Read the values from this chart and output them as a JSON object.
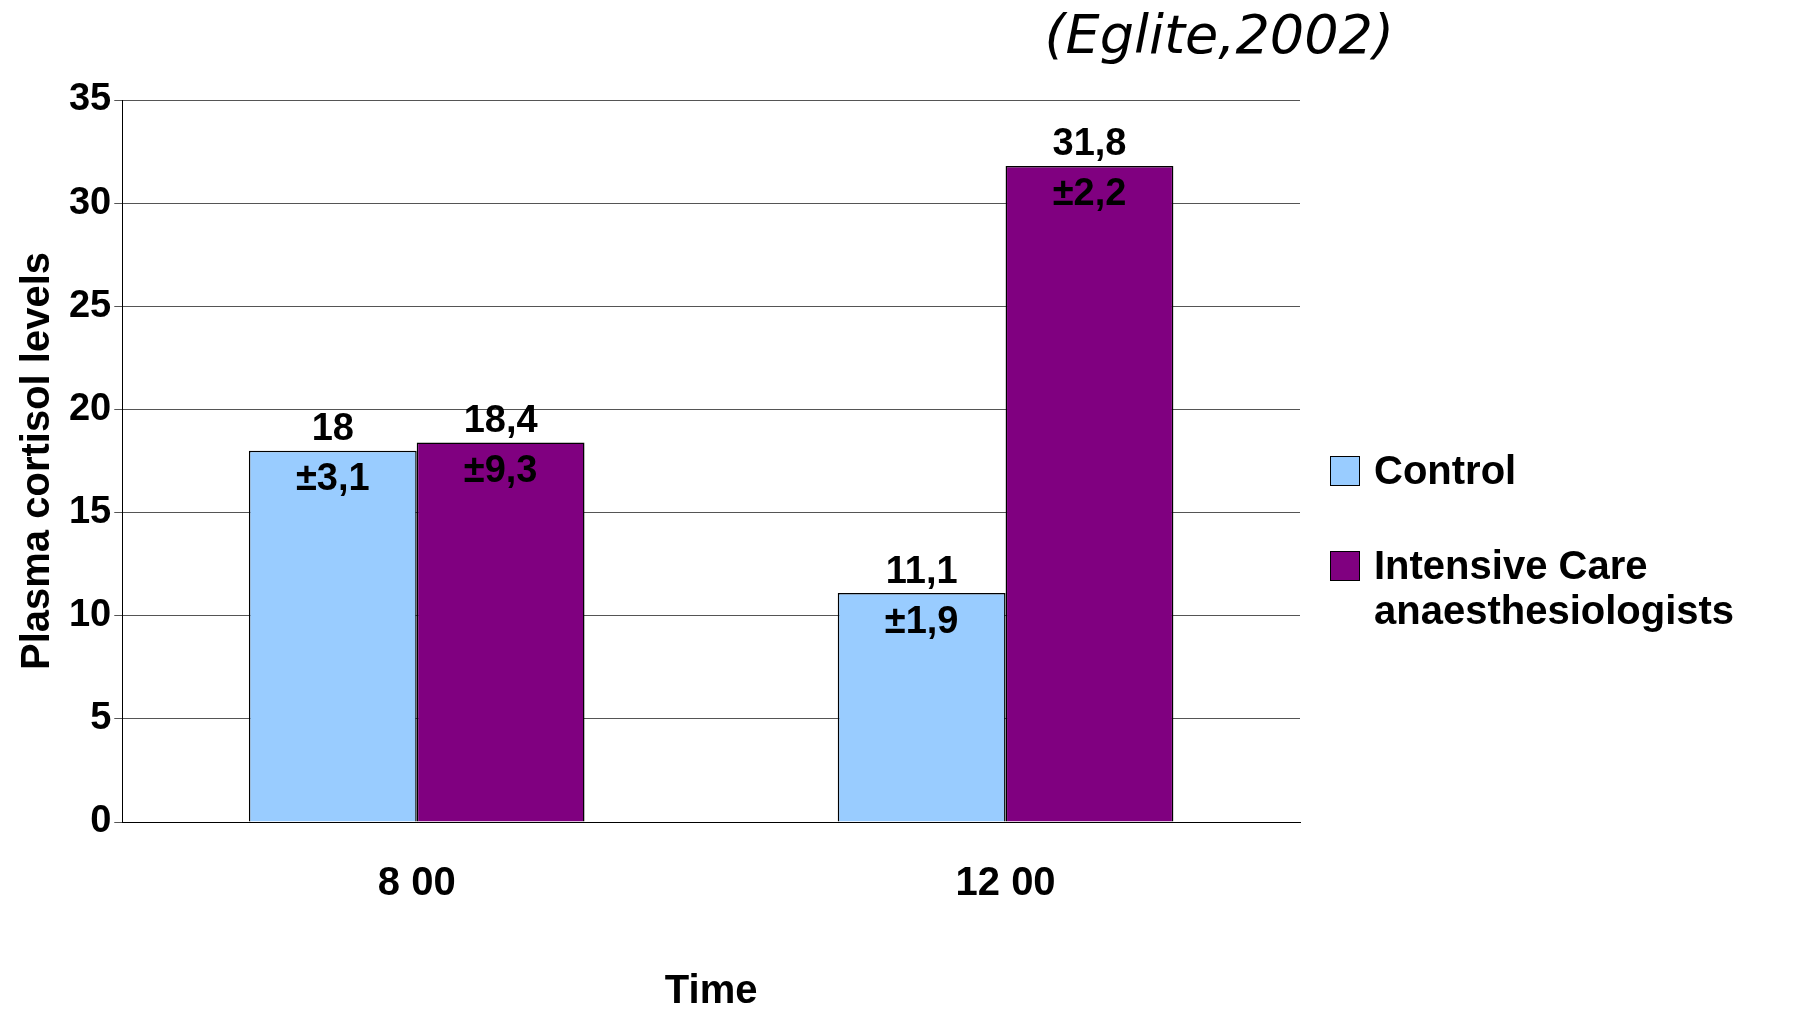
{
  "chart_data": {
    "type": "bar",
    "title": "(Eglite,2002)",
    "xlabel": "Time",
    "ylabel": "Plasma cortisol levels",
    "categories": [
      "8 00",
      "12 00"
    ],
    "series": [
      {
        "name": "Control",
        "color": "#99ccff",
        "values": [
          18,
          11.1
        ],
        "value_labels": [
          "18\n±3,1",
          "11,1\n±1,9"
        ]
      },
      {
        "name": "Intensive Care anaesthesiologists",
        "color": "#800080",
        "values": [
          18.4,
          31.8
        ],
        "value_labels": [
          "18,4\n±9,3",
          "31,8\n±2,2"
        ]
      }
    ],
    "ylim": [
      0,
      35
    ],
    "yticks": [
      0,
      5,
      10,
      15,
      20,
      25,
      30,
      35
    ],
    "grid": "y",
    "legend": "right"
  }
}
